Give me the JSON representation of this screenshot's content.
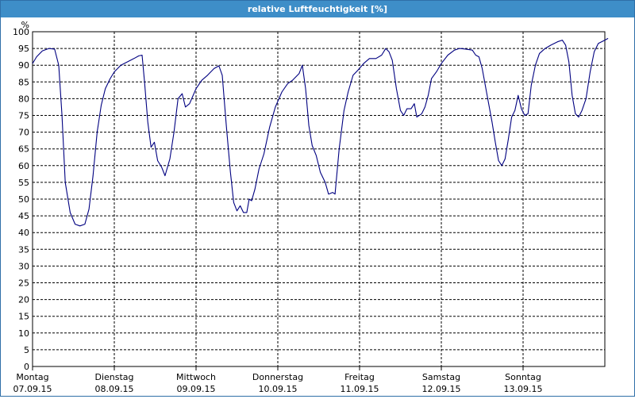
{
  "window": {
    "title": "relative Luftfeuchtigkeit [%]"
  },
  "chart_data": {
    "type": "line",
    "title": "relative Luftfeuchtigkeit [%]",
    "ylabel": "%",
    "ylim": [
      0,
      100
    ],
    "yticks": [
      0,
      5,
      10,
      15,
      20,
      25,
      30,
      35,
      40,
      45,
      50,
      55,
      60,
      65,
      70,
      75,
      80,
      85,
      90,
      95,
      100
    ],
    "xlim": [
      0,
      7
    ],
    "grid": true,
    "x_categories": [
      {
        "day": "Montag",
        "date": "07.09.15"
      },
      {
        "day": "Dienstag",
        "date": "08.09.15"
      },
      {
        "day": "Mittwoch",
        "date": "09.09.15"
      },
      {
        "day": "Donnerstag",
        "date": "10.09.15"
      },
      {
        "day": "Freitag",
        "date": "11.09.15"
      },
      {
        "day": "Samstag",
        "date": "12.09.15"
      },
      {
        "day": "Sonntag",
        "date": "13.09.15"
      }
    ],
    "series": [
      {
        "color": "#000080",
        "points": [
          [
            0.0,
            90.5
          ],
          [
            0.05,
            92.5
          ],
          [
            0.12,
            94.3
          ],
          [
            0.2,
            95.0
          ],
          [
            0.27,
            94.8
          ],
          [
            0.32,
            90.0
          ],
          [
            0.36,
            75.0
          ],
          [
            0.4,
            55.0
          ],
          [
            0.46,
            46.0
          ],
          [
            0.52,
            42.5
          ],
          [
            0.58,
            42.0
          ],
          [
            0.64,
            42.5
          ],
          [
            0.69,
            47.0
          ],
          [
            0.74,
            57.0
          ],
          [
            0.79,
            70.0
          ],
          [
            0.84,
            78.0
          ],
          [
            0.89,
            83.0
          ],
          [
            0.95,
            86.0
          ],
          [
            1.0,
            88.0
          ],
          [
            1.08,
            90.0
          ],
          [
            1.16,
            91.0
          ],
          [
            1.24,
            92.0
          ],
          [
            1.3,
            92.8
          ],
          [
            1.34,
            93.0
          ],
          [
            1.37,
            85.0
          ],
          [
            1.41,
            73.0
          ],
          [
            1.45,
            65.5
          ],
          [
            1.49,
            67.0
          ],
          [
            1.53,
            61.5
          ],
          [
            1.58,
            59.5
          ],
          [
            1.62,
            57.0
          ],
          [
            1.68,
            62.0
          ],
          [
            1.73,
            70.0
          ],
          [
            1.78,
            80.0
          ],
          [
            1.83,
            81.5
          ],
          [
            1.87,
            77.5
          ],
          [
            1.92,
            78.5
          ],
          [
            2.0,
            83.0
          ],
          [
            2.07,
            85.5
          ],
          [
            2.14,
            87.0
          ],
          [
            2.22,
            89.0
          ],
          [
            2.28,
            89.8
          ],
          [
            2.32,
            87.0
          ],
          [
            2.37,
            72.0
          ],
          [
            2.42,
            58.0
          ],
          [
            2.46,
            49.0
          ],
          [
            2.5,
            46.5
          ],
          [
            2.54,
            48.0
          ],
          [
            2.58,
            46.0
          ],
          [
            2.62,
            46.0
          ],
          [
            2.65,
            50.0
          ],
          [
            2.68,
            49.5
          ],
          [
            2.72,
            53.0
          ],
          [
            2.77,
            59.0
          ],
          [
            2.83,
            63.5
          ],
          [
            2.9,
            71.5
          ],
          [
            2.97,
            77.5
          ],
          [
            3.05,
            82.0
          ],
          [
            3.12,
            84.5
          ],
          [
            3.18,
            85.5
          ],
          [
            3.26,
            87.5
          ],
          [
            3.3,
            90.0
          ],
          [
            3.34,
            83.0
          ],
          [
            3.38,
            72.0
          ],
          [
            3.42,
            66.0
          ],
          [
            3.47,
            63.0
          ],
          [
            3.52,
            58.0
          ],
          [
            3.58,
            55.0
          ],
          [
            3.62,
            51.5
          ],
          [
            3.67,
            52.0
          ],
          [
            3.7,
            51.5
          ],
          [
            3.75,
            65.0
          ],
          [
            3.81,
            76.5
          ],
          [
            3.86,
            82.0
          ],
          [
            3.92,
            87.0
          ],
          [
            3.98,
            88.5
          ],
          [
            4.05,
            90.5
          ],
          [
            4.12,
            92.0
          ],
          [
            4.2,
            92.0
          ],
          [
            4.27,
            93.0
          ],
          [
            4.32,
            95.0
          ],
          [
            4.36,
            94.0
          ],
          [
            4.4,
            91.5
          ],
          [
            4.45,
            83.0
          ],
          [
            4.5,
            76.5
          ],
          [
            4.54,
            75.0
          ],
          [
            4.58,
            77.0
          ],
          [
            4.63,
            77.0
          ],
          [
            4.67,
            78.5
          ],
          [
            4.7,
            74.5
          ],
          [
            4.76,
            75.5
          ],
          [
            4.8,
            77.5
          ],
          [
            4.84,
            81.0
          ],
          [
            4.88,
            86.0
          ],
          [
            4.94,
            88.0
          ],
          [
            5.0,
            90.5
          ],
          [
            5.08,
            93.0
          ],
          [
            5.16,
            94.5
          ],
          [
            5.22,
            95.0
          ],
          [
            5.3,
            94.8
          ],
          [
            5.38,
            94.5
          ],
          [
            5.42,
            93.0
          ],
          [
            5.46,
            92.5
          ],
          [
            5.5,
            89.0
          ],
          [
            5.56,
            81.0
          ],
          [
            5.62,
            73.0
          ],
          [
            5.66,
            67.0
          ],
          [
            5.7,
            61.5
          ],
          [
            5.74,
            60.0
          ],
          [
            5.78,
            62.0
          ],
          [
            5.82,
            68.0
          ],
          [
            5.86,
            74.5
          ],
          [
            5.9,
            76.5
          ],
          [
            5.94,
            81.0
          ],
          [
            5.98,
            77.0
          ],
          [
            6.02,
            75.0
          ],
          [
            6.06,
            75.5
          ],
          [
            6.1,
            84.0
          ],
          [
            6.15,
            90.0
          ],
          [
            6.2,
            93.5
          ],
          [
            6.27,
            95.0
          ],
          [
            6.34,
            96.0
          ],
          [
            6.42,
            97.0
          ],
          [
            6.48,
            97.5
          ],
          [
            6.52,
            96.0
          ],
          [
            6.56,
            91.0
          ],
          [
            6.6,
            81.0
          ],
          [
            6.64,
            75.5
          ],
          [
            6.68,
            74.5
          ],
          [
            6.72,
            76.5
          ],
          [
            6.77,
            80.0
          ],
          [
            6.82,
            88.0
          ],
          [
            6.87,
            94.0
          ],
          [
            6.92,
            96.5
          ],
          [
            7.0,
            97.5
          ],
          [
            7.04,
            98.0
          ]
        ]
      }
    ]
  }
}
